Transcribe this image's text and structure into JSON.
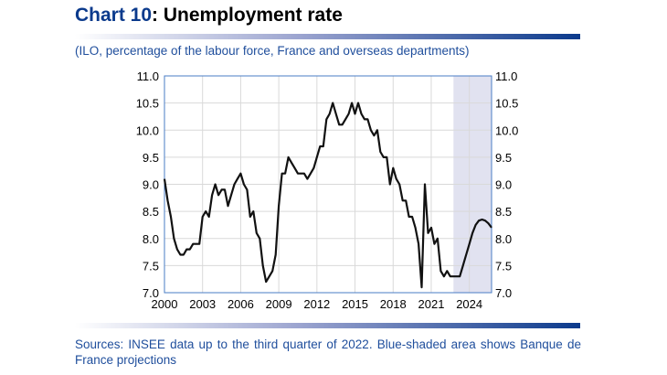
{
  "title": {
    "prefix": "Chart 10",
    "rest": ": Unemployment rate"
  },
  "subtitle": "(ILO, percentage of the labour force, France and overseas departments)",
  "source": "Sources: INSEE data up to the third quarter of 2022. Blue-shaded area shows Banque de France projections",
  "colors": {
    "brand": "#0b3a8c",
    "text_blue": "#1f4e9c",
    "line": "#111111",
    "shade": "#e1e2f0",
    "frame": "#4a7cc4",
    "grid": "#d9d9d9"
  },
  "chart_data": {
    "type": "line",
    "title": "Unemployment rate",
    "xlim": [
      2000,
      2025.75
    ],
    "ylim": [
      7.0,
      11.0
    ],
    "xticks": [
      "2000",
      "2003",
      "2006",
      "2009",
      "2012",
      "2015",
      "2018",
      "2021",
      "2024"
    ],
    "yticks": [
      "7.0",
      "7.5",
      "8.0",
      "8.5",
      "9.0",
      "9.5",
      "10.0",
      "10.5",
      "11.0"
    ],
    "grid": true,
    "projection_shaded_from": 2022.75,
    "frequency": "quarterly",
    "start": "2000-Q1",
    "values": [
      9.1,
      8.7,
      8.4,
      8.0,
      7.8,
      7.7,
      7.7,
      7.8,
      7.8,
      7.9,
      7.9,
      7.9,
      8.4,
      8.5,
      8.4,
      8.8,
      9.0,
      8.8,
      8.9,
      8.9,
      8.6,
      8.8,
      9.0,
      9.1,
      9.2,
      9.0,
      8.9,
      8.4,
      8.5,
      8.1,
      8.0,
      7.5,
      7.2,
      7.3,
      7.4,
      7.7,
      8.6,
      9.2,
      9.2,
      9.5,
      9.4,
      9.3,
      9.2,
      9.2,
      9.2,
      9.1,
      9.2,
      9.3,
      9.5,
      9.7,
      9.7,
      10.2,
      10.3,
      10.5,
      10.3,
      10.1,
      10.1,
      10.2,
      10.3,
      10.5,
      10.3,
      10.5,
      10.3,
      10.2,
      10.2,
      10.0,
      9.9,
      10.0,
      9.6,
      9.5,
      9.5,
      9.0,
      9.3,
      9.1,
      9.0,
      8.7,
      8.7,
      8.4,
      8.4,
      8.2,
      7.9,
      7.1,
      9.0,
      8.1,
      8.2,
      7.9,
      8.0,
      7.4,
      7.3,
      7.4,
      7.3,
      7.3,
      7.3,
      7.3,
      7.5,
      7.7,
      7.9,
      8.1,
      8.25,
      8.33,
      8.35,
      8.33,
      8.28,
      8.2
    ]
  }
}
